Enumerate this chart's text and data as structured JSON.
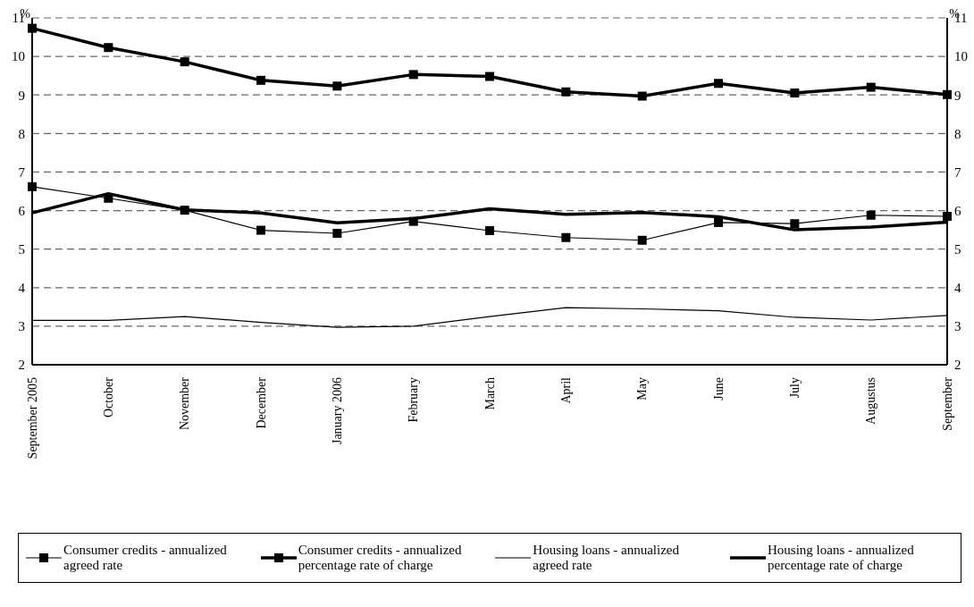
{
  "chart_data": {
    "type": "line",
    "ylabel": "%",
    "y2label": "%",
    "categories": [
      "September 2005",
      "October",
      "November",
      "December",
      "January 2006",
      "February",
      "March",
      "April",
      "May",
      "June",
      "July",
      "Augustus",
      "September"
    ],
    "series": [
      {
        "name": "Consumer credits - annualized agreed rate",
        "color": "#000000",
        "marker": "square",
        "values": [
          6.62,
          6.32,
          6.01,
          5.49,
          5.41,
          5.72,
          5.48,
          5.3,
          5.23,
          5.69,
          5.66,
          5.88,
          5.85
        ]
      },
      {
        "name": "Consumer credits - annualized percentage rate of charge",
        "color": "#000000",
        "marker": "square",
        "values": [
          10.73,
          10.23,
          9.86,
          9.38,
          9.23,
          9.53,
          9.48,
          9.08,
          8.97,
          9.3,
          9.05,
          9.2,
          9.01
        ]
      },
      {
        "name": "Housing loans - annualized agreed rate",
        "color": "#000000",
        "marker": "none",
        "values": [
          3.15,
          3.15,
          3.25,
          3.1,
          2.97,
          3.0,
          3.25,
          3.48,
          3.45,
          3.4,
          3.23,
          3.16,
          3.28
        ]
      },
      {
        "name": "Housing loans - annualized percentage rate of charge",
        "color": "#000000",
        "marker": "none",
        "values": [
          5.94,
          6.44,
          6.02,
          5.94,
          5.68,
          5.79,
          6.05,
          5.9,
          5.95,
          5.84,
          5.5,
          5.57,
          5.7
        ]
      }
    ],
    "ylim": [
      2,
      11
    ],
    "yticks": [
      2,
      3,
      4,
      5,
      6,
      7,
      8,
      9,
      10,
      11
    ],
    "y2lim": [
      2,
      11
    ],
    "y2ticks": [
      2,
      3,
      4,
      5,
      6,
      7,
      8,
      9,
      10,
      11
    ],
    "grid": "y",
    "legend": "bottom"
  }
}
